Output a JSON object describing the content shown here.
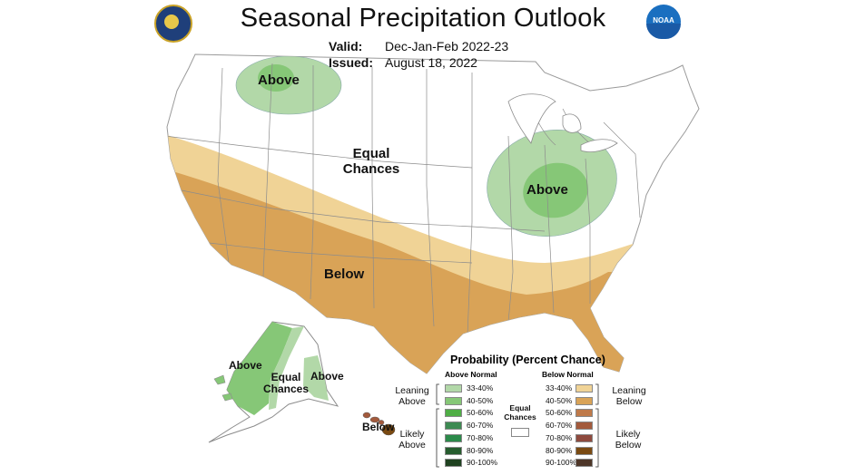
{
  "title": "Seasonal Precipitation Outlook",
  "valid": {
    "label": "Valid:",
    "value": "Dec-Jan-Feb 2022-23"
  },
  "issued": {
    "label": "Issued:",
    "value": "August 18, 2022"
  },
  "logos": {
    "left": "doc-seal-icon",
    "right": "noaa-logo-icon",
    "noaa_text": "NOAA"
  },
  "map_labels": {
    "above_northwest": "Above",
    "equal_chances_1": "Equal",
    "equal_chances_2": "Chances",
    "above_great_lakes": "Above",
    "below_south": "Below",
    "alaska_above_west": "Above",
    "alaska_equal_1": "Equal",
    "alaska_equal_2": "Chances",
    "alaska_above_southeast": "Above",
    "hawaii_below": "Below"
  },
  "colors": {
    "above_33_40": "#b2d8a8",
    "above_40_50": "#86c777",
    "below_33_40": "#f0d396",
    "below_40_50": "#d9a357"
  },
  "legend": {
    "title": "Probability (Percent Chance)",
    "above_header": "Above Normal",
    "below_header": "Below Normal",
    "leaning_above_1": "Leaning",
    "leaning_above_2": "Above",
    "likely_above_1": "Likely",
    "likely_above_2": "Above",
    "leaning_below_1": "Leaning",
    "leaning_below_2": "Below",
    "likely_below_1": "Likely",
    "likely_below_2": "Below",
    "equal_1": "Equal",
    "equal_2": "Chances",
    "ranges": [
      "33-40%",
      "40-50%",
      "50-60%",
      "60-70%",
      "70-80%",
      "80-90%",
      "90-100%"
    ],
    "above_colors": [
      "#b2d8a8",
      "#86c777",
      "#4fae45",
      "#3d8a52",
      "#2b8a4a",
      "#265c2e",
      "#1f4220"
    ],
    "below_colors": [
      "#f0d396",
      "#d9a357",
      "#bf7a4a",
      "#a35a3c",
      "#8e4a3e",
      "#7a4a12",
      "#4e3628"
    ]
  }
}
